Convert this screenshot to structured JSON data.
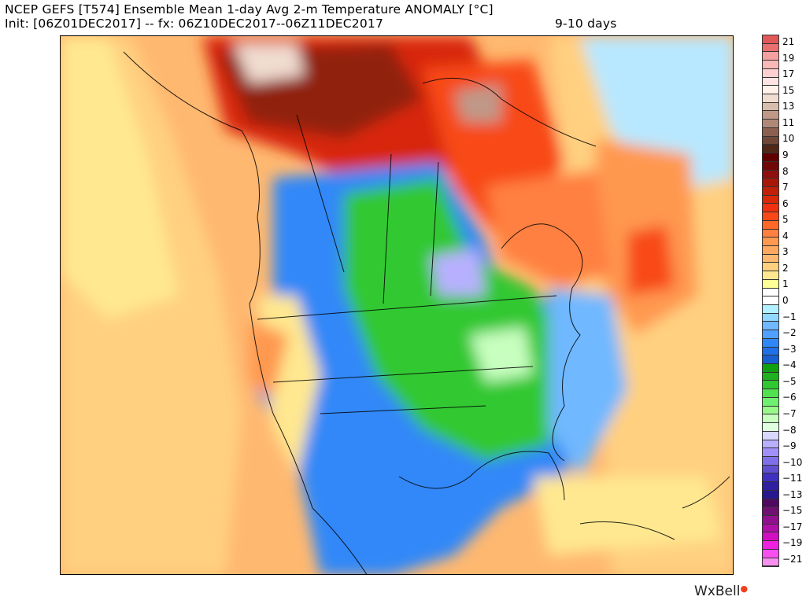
{
  "title": {
    "line1": "NCEP GEFS [T574] Ensemble Mean 1-day Avg 2-m Temperature ANOMALY [°C]",
    "line2": "Init: [06Z01DEC2017] -- fx: 06Z10DEC2017--06Z11DEC2017",
    "forecast_range": "9-10 days"
  },
  "colorbar": {
    "labels": [
      "21",
      "19",
      "17",
      "15",
      "13",
      "11",
      "10",
      "9",
      "8",
      "7",
      "6",
      "5",
      "4",
      "3",
      "2",
      "1",
      "0",
      "−1",
      "−2",
      "−3",
      "−4",
      "−5",
      "−6",
      "−7",
      "−8",
      "−9",
      "−10",
      "−11",
      "−13",
      "−15",
      "−17",
      "−19",
      "−21"
    ],
    "colors": [
      "#e05858",
      "#e87070",
      "#f3a0a0",
      "#f8b8b8",
      "#fcd0d0",
      "#ffe4e4",
      "#fff2ea",
      "#f0dcd0",
      "#d8bcac",
      "#c09888",
      "#b08878",
      "#8c6050",
      "#704838",
      "#502818",
      "#600000",
      "#700808",
      "#901010",
      "#a81808",
      "#c02008",
      "#d82808",
      "#f03010",
      "#f84818",
      "#ff6828",
      "#ff8040",
      "#ff9850",
      "#ffa860",
      "#ffb870",
      "#ffd080",
      "#ffe890",
      "#ffff98",
      "#ffffff",
      "#ffffff",
      "#b0f0ff",
      "#90d8ff",
      "#70b8ff",
      "#50a0ff",
      "#3088f8",
      "#2070e8",
      "#1860d0",
      "#10a010",
      "#20b020",
      "#30c830",
      "#50e050",
      "#70f070",
      "#98f888",
      "#c8ffc0",
      "#e0ffe0",
      "#d8d8ff",
      "#b8b0ff",
      "#a090f8",
      "#8070e8",
      "#6050d0",
      "#4030c0",
      "#3020a0",
      "#281890",
      "#500860",
      "#701070",
      "#901090",
      "#b010a8",
      "#d010c0",
      "#f020e0",
      "#f850f0",
      "#f890f0"
    ]
  },
  "logo": "WxBell"
}
